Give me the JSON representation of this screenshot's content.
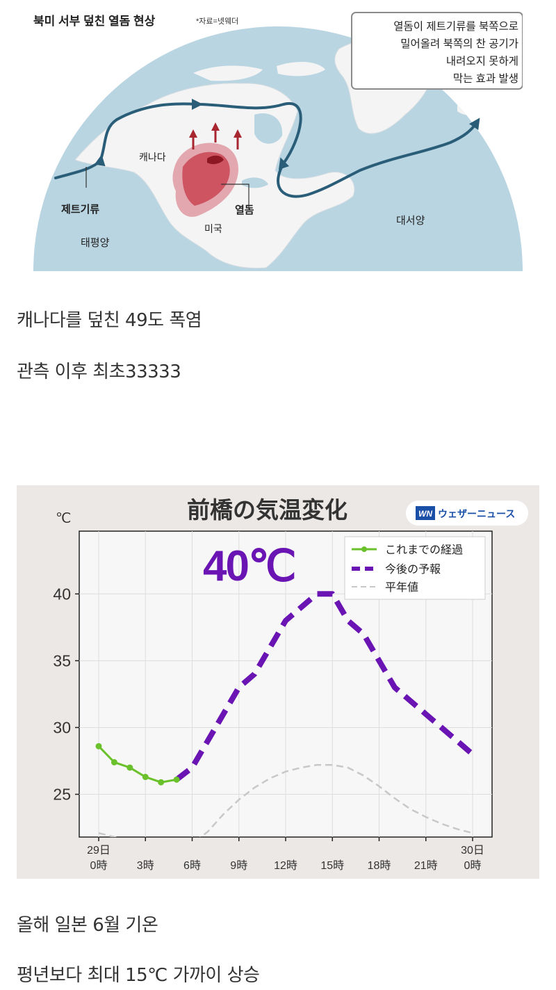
{
  "map": {
    "title": "북미 서부 덮친 열돔 현상",
    "source": "*자료=넷웨더",
    "callout_lines": [
      "열돔이 제트기류를 북쪽으로",
      "밀어올려 북쪽의 찬 공기가",
      "내려오지 못하게",
      "막는 효과 발생"
    ],
    "labels": {
      "canada": "캐나다",
      "jet_stream": "제트기류",
      "heat_dome": "열돔",
      "usa": "미국",
      "pacific": "태평양",
      "atlantic": "대서양"
    },
    "colors": {
      "ocean": "#b9d5e2",
      "land": "#f4f4f4",
      "jet": "#2a5d78",
      "heat": "#c9404f"
    }
  },
  "paragraphs": {
    "p1": "캐나다를 덮친 49도 폭염",
    "p2": "관측 이후 최초33333",
    "p3": "올해 일본 6월 기온",
    "p4": "평년보다 최대 15℃ 가까이 상승"
  },
  "chart_data": {
    "type": "line",
    "title": "前橋の気温変化",
    "brand": "ウェザーニュース",
    "brand_logo": "WN",
    "highlight": "40℃",
    "ylabel": "℃",
    "ylim": [
      21.8,
      44.7
    ],
    "xlim": [
      0,
      24
    ],
    "yticks": [
      25,
      30,
      35,
      40
    ],
    "xticks": [
      {
        "x": 0,
        "line1": "29日",
        "line2": "0時"
      },
      {
        "x": 3,
        "line1": "",
        "line2": "3時"
      },
      {
        "x": 6,
        "line1": "",
        "line2": "6時"
      },
      {
        "x": 9,
        "line1": "",
        "line2": "9時"
      },
      {
        "x": 12,
        "line1": "",
        "line2": "12時"
      },
      {
        "x": 15,
        "line1": "",
        "line2": "15時"
      },
      {
        "x": 18,
        "line1": "",
        "line2": "18時"
      },
      {
        "x": 21,
        "line1": "",
        "line2": "21時"
      },
      {
        "x": 24,
        "line1": "30日",
        "line2": "0時"
      }
    ],
    "grid": true,
    "legend_position": "top-right",
    "series": [
      {
        "name": "これまでの経過",
        "style": "solid-markers",
        "color": "#6ac12b",
        "x": [
          0,
          1,
          2,
          3,
          4,
          5
        ],
        "y": [
          28.6,
          27.4,
          27.0,
          26.3,
          25.9,
          26.1
        ]
      },
      {
        "name": "今後の予報",
        "style": "dashed",
        "color": "#6a14b4",
        "x": [
          5,
          6,
          7,
          8,
          9,
          10,
          11,
          12,
          13,
          14,
          15,
          16,
          17,
          18,
          19,
          20,
          21,
          22,
          23,
          24
        ],
        "y": [
          26.1,
          27.0,
          29.0,
          31.0,
          33.0,
          34.0,
          36.0,
          38.0,
          39.0,
          40.0,
          40.0,
          38.0,
          37.0,
          35.0,
          33.0,
          32.0,
          31.0,
          30.0,
          29.0,
          28.0
        ]
      },
      {
        "name": "平年値",
        "style": "dashed-thin",
        "color": "#c8c8c8",
        "x": [
          0,
          1,
          2,
          3,
          4,
          5,
          6,
          7,
          8,
          9,
          10,
          11,
          12,
          13,
          14,
          15,
          16,
          17,
          18,
          19,
          20,
          21,
          22,
          23,
          24
        ],
        "y": [
          22.1,
          21.8,
          21.5,
          21.2,
          21.0,
          20.9,
          21.3,
          22.2,
          23.5,
          24.6,
          25.5,
          26.2,
          26.7,
          27.0,
          27.2,
          27.2,
          27.0,
          26.4,
          25.6,
          24.7,
          23.9,
          23.3,
          22.8,
          22.4,
          22.1
        ]
      }
    ]
  }
}
